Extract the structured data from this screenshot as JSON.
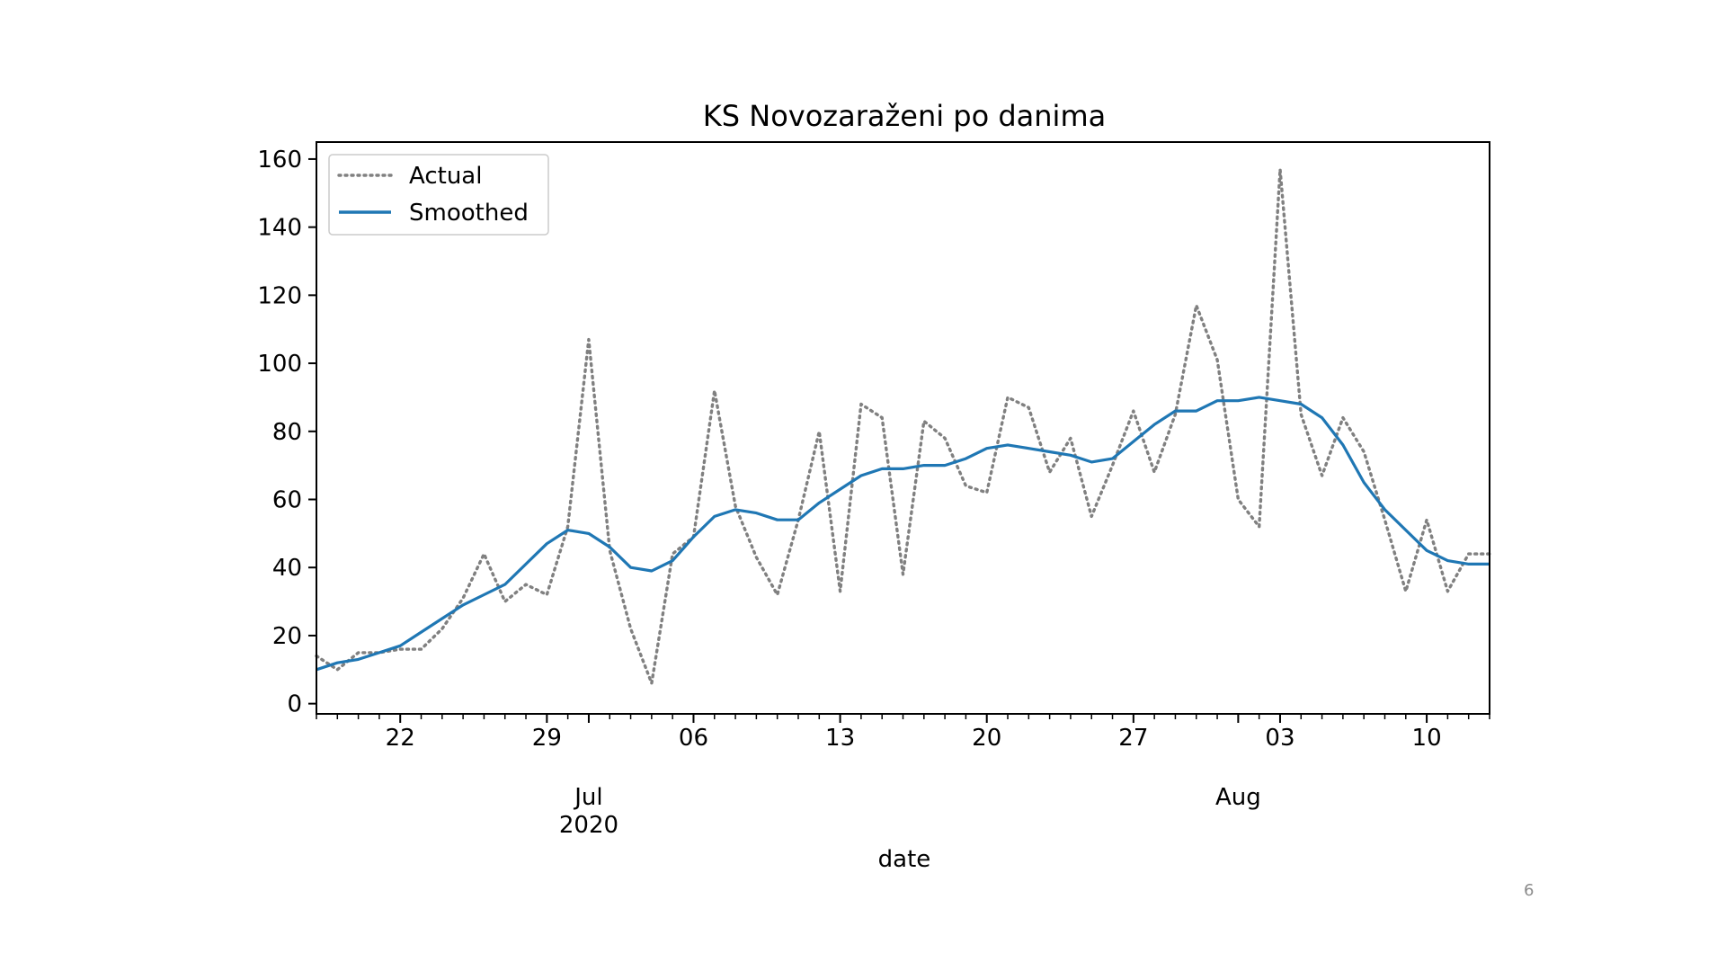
{
  "page_number": "6",
  "chart_data": {
    "type": "line",
    "title": "KS Novozaraženi po danima",
    "xlabel": "date",
    "ylabel": "",
    "ylim": [
      -3,
      165
    ],
    "yticks": [
      0,
      20,
      40,
      60,
      80,
      100,
      120,
      140,
      160
    ],
    "xlim": [
      "2020-06-18",
      "2020-08-13"
    ],
    "xticks": [
      {
        "date": "2020-06-22",
        "label": "22"
      },
      {
        "date": "2020-06-29",
        "label": "29"
      },
      {
        "date": "2020-07-06",
        "label": "06"
      },
      {
        "date": "2020-07-13",
        "label": "13"
      },
      {
        "date": "2020-07-20",
        "label": "20"
      },
      {
        "date": "2020-07-27",
        "label": "27"
      },
      {
        "date": "2020-08-03",
        "label": "03"
      },
      {
        "date": "2020-08-10",
        "label": "10"
      }
    ],
    "month_ticks": [
      {
        "date": "2020-07-01",
        "label": "Jul",
        "sublabel": "2020"
      },
      {
        "date": "2020-08-01",
        "label": "Aug",
        "sublabel": ""
      }
    ],
    "grid": false,
    "legend_position": "top-left",
    "x": [
      "2020-06-18",
      "2020-06-19",
      "2020-06-20",
      "2020-06-21",
      "2020-06-22",
      "2020-06-23",
      "2020-06-24",
      "2020-06-25",
      "2020-06-26",
      "2020-06-27",
      "2020-06-28",
      "2020-06-29",
      "2020-06-30",
      "2020-07-01",
      "2020-07-02",
      "2020-07-03",
      "2020-07-04",
      "2020-07-05",
      "2020-07-06",
      "2020-07-07",
      "2020-07-08",
      "2020-07-09",
      "2020-07-10",
      "2020-07-11",
      "2020-07-12",
      "2020-07-13",
      "2020-07-14",
      "2020-07-15",
      "2020-07-16",
      "2020-07-17",
      "2020-07-18",
      "2020-07-19",
      "2020-07-20",
      "2020-07-21",
      "2020-07-22",
      "2020-07-23",
      "2020-07-24",
      "2020-07-25",
      "2020-07-26",
      "2020-07-27",
      "2020-07-28",
      "2020-07-29",
      "2020-07-30",
      "2020-07-31",
      "2020-08-01",
      "2020-08-02",
      "2020-08-03",
      "2020-08-04",
      "2020-08-05",
      "2020-08-06",
      "2020-08-07",
      "2020-08-08",
      "2020-08-09",
      "2020-08-10",
      "2020-08-11",
      "2020-08-12",
      "2020-08-13"
    ],
    "series": [
      {
        "name": "Actual",
        "color": "#808080",
        "style": "dotted",
        "values": [
          14,
          10,
          15,
          15,
          16,
          16,
          22,
          31,
          44,
          30,
          35,
          32,
          52,
          107,
          45,
          22,
          6,
          44,
          49,
          92,
          58,
          43,
          32,
          54,
          80,
          33,
          88,
          84,
          38,
          83,
          78,
          64,
          62,
          90,
          87,
          68,
          78,
          55,
          70,
          86,
          68,
          85,
          117,
          101,
          60,
          52,
          157,
          85,
          67,
          84,
          74,
          54,
          33,
          54,
          33,
          44,
          44
        ]
      },
      {
        "name": "Smoothed",
        "color": "#1f77b4",
        "style": "solid",
        "values": [
          10,
          12,
          13,
          15,
          17,
          21,
          25,
          29,
          32,
          35,
          41,
          47,
          51,
          50,
          46,
          40,
          39,
          42,
          49,
          55,
          57,
          56,
          54,
          54,
          59,
          63,
          67,
          69,
          69,
          70,
          70,
          72,
          75,
          76,
          75,
          74,
          73,
          71,
          72,
          77,
          82,
          86,
          86,
          89,
          89,
          90,
          89,
          88,
          84,
          76,
          65,
          57,
          51,
          45,
          42,
          41,
          41
        ]
      }
    ]
  }
}
